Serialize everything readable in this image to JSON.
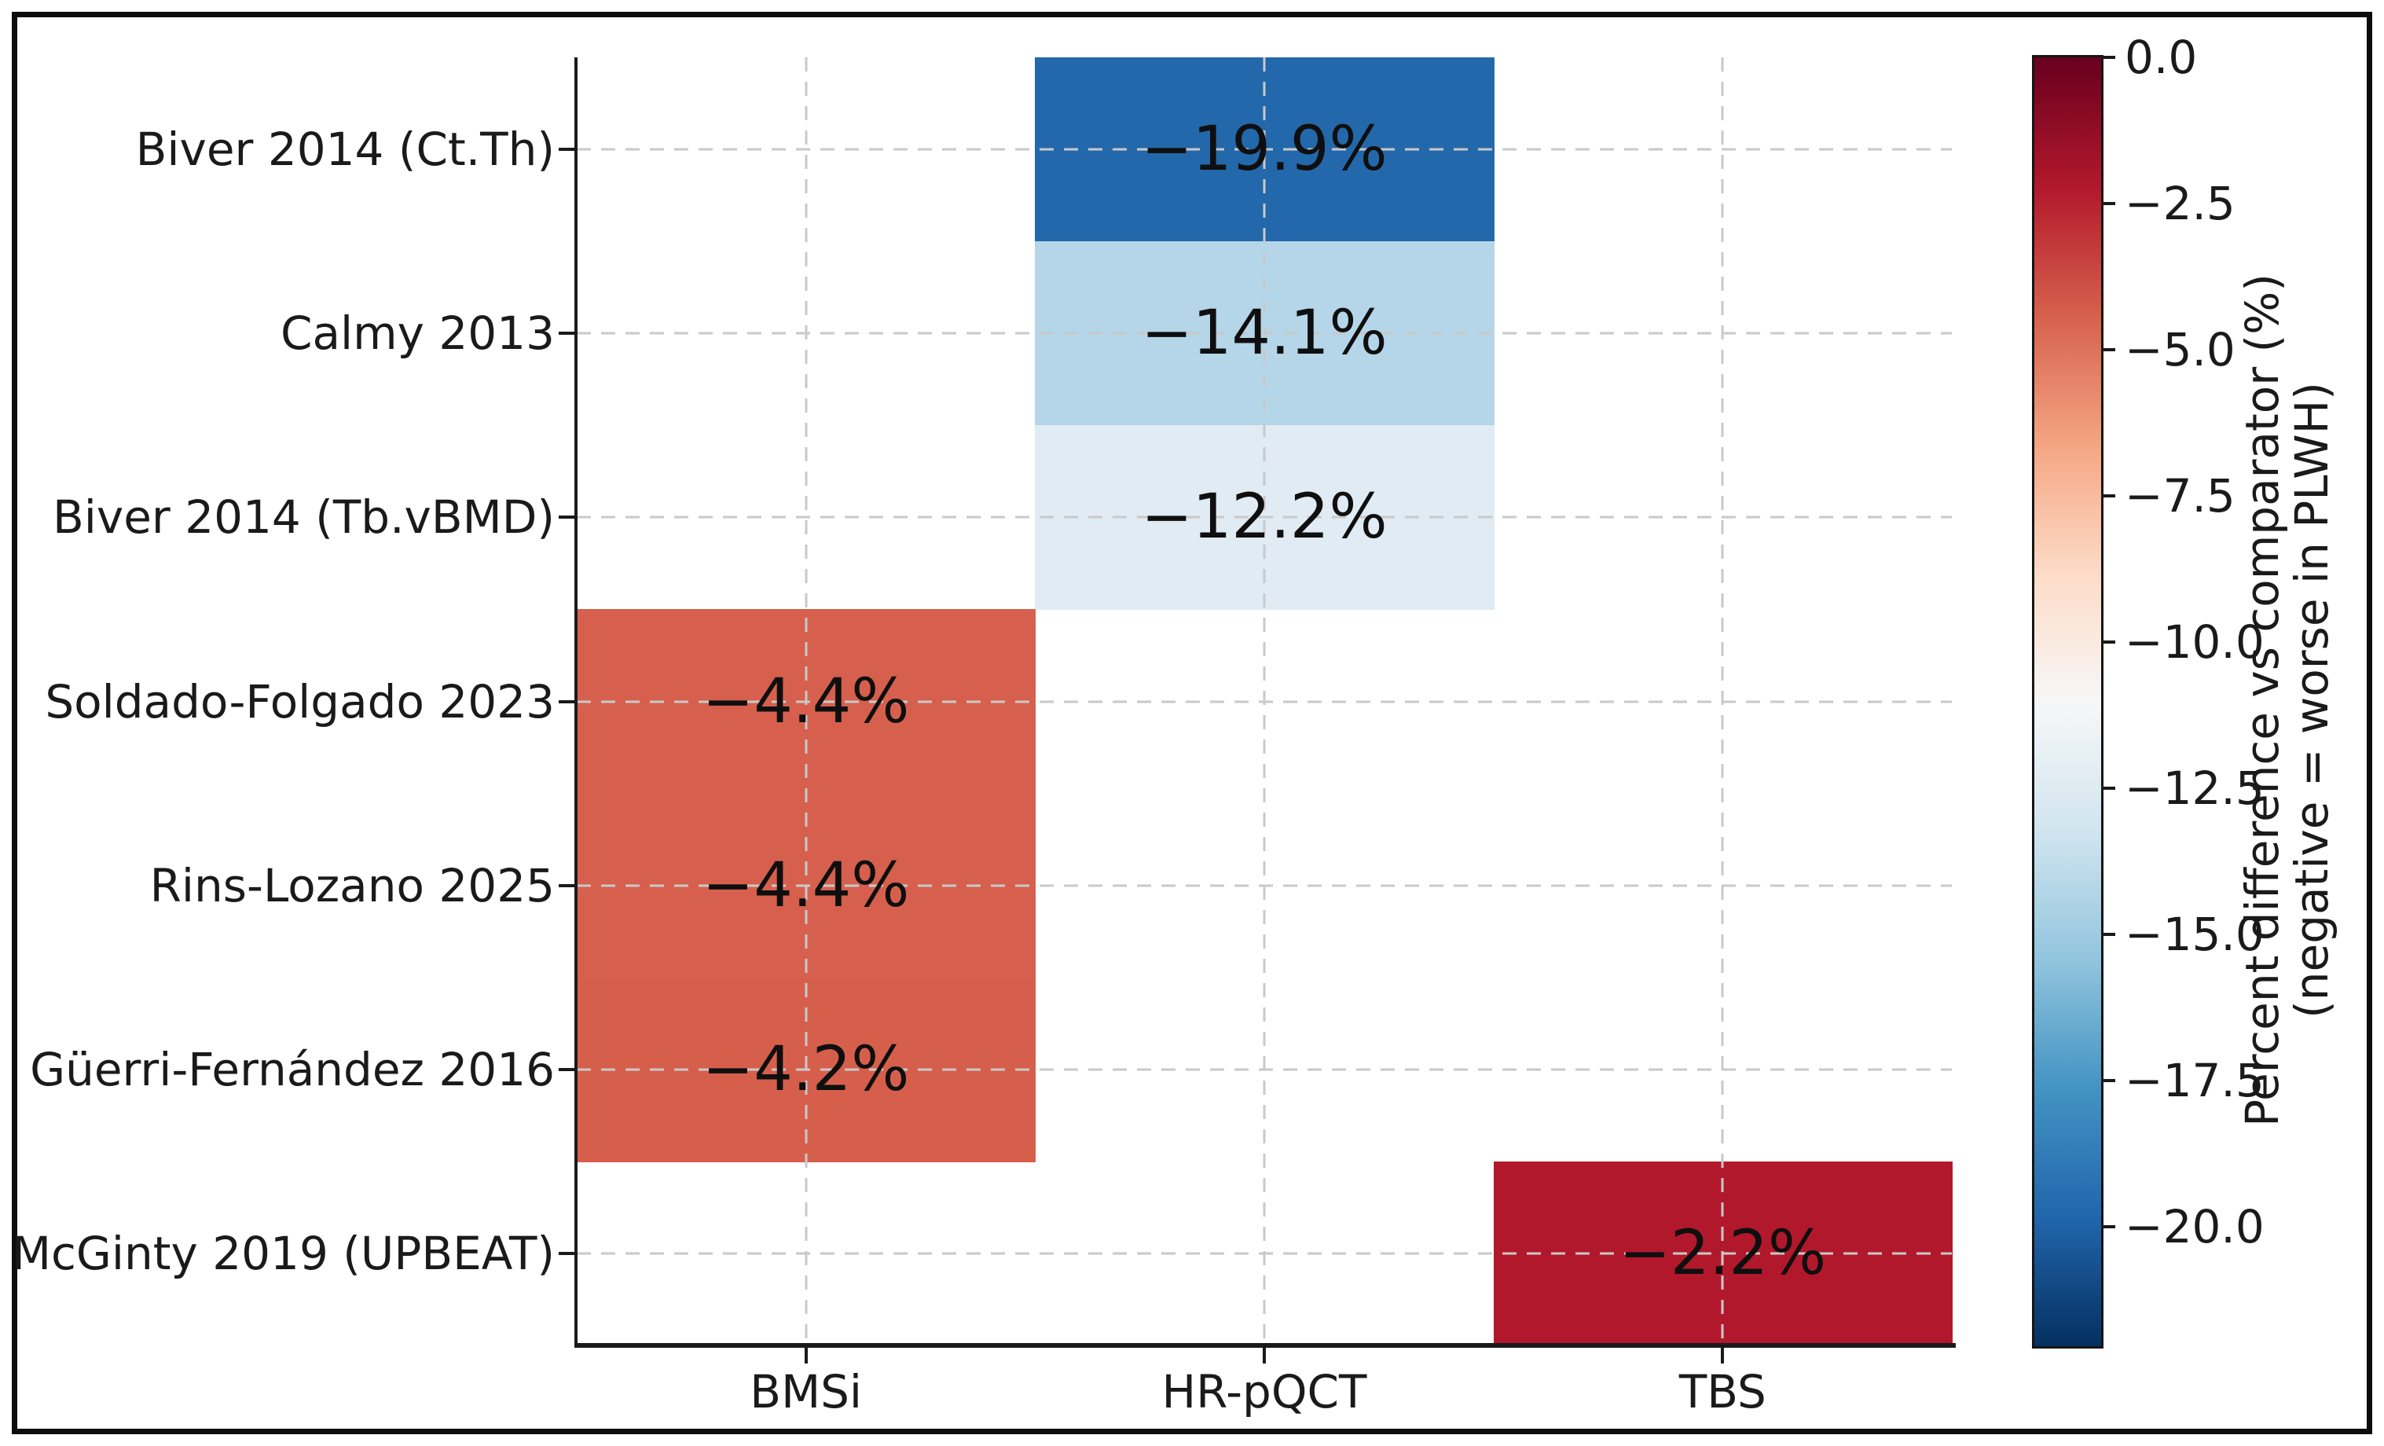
{
  "chart_data": {
    "type": "heatmap",
    "title": "",
    "xlabel": "",
    "ylabel": "",
    "grid": "dashed, drawn over cells",
    "columns": [
      "BMSi",
      "HR-pQCT",
      "TBS"
    ],
    "rows": [
      "Biver 2014 (Ct.Th)",
      "Calmy 2013",
      "Biver 2014 (Tb.vBMD)",
      "Soldado-Folgado 2023",
      "Rins-Lozano 2025",
      "Güerri-Fernández 2016",
      "McGinty 2019 (UPBEAT)"
    ],
    "cells": [
      {
        "row": 0,
        "col": 1,
        "value": -19.9,
        "label": "−19.9%",
        "color": "#2368ab"
      },
      {
        "row": 1,
        "col": 1,
        "value": -14.1,
        "label": "−14.1%",
        "color": "#b4d6e8"
      },
      {
        "row": 2,
        "col": 1,
        "value": -12.2,
        "label": "−12.2%",
        "color": "#e0ebf3"
      },
      {
        "row": 3,
        "col": 0,
        "value": -4.4,
        "label": "−4.4%",
        "color": "#d6604d"
      },
      {
        "row": 4,
        "col": 0,
        "value": -4.4,
        "label": "−4.4%",
        "color": "#d6604d"
      },
      {
        "row": 5,
        "col": 0,
        "value": -4.2,
        "label": "−4.2%",
        "color": "#d65f4c"
      },
      {
        "row": 6,
        "col": 2,
        "value": -2.2,
        "label": "−2.2%",
        "color": "#b2182b"
      }
    ],
    "empty_cell_color": "#ffffff",
    "colorbar": {
      "label_line1": "Percent difference vs comparator (%)",
      "label_line2": "(negative = worse in PLWH)",
      "vmax": 0.0,
      "vmin": -22.0,
      "colormap": "RdBu_r",
      "gradient_top_to_bottom": [
        "#67001f",
        "#b2182b",
        "#d6604d",
        "#f4a582",
        "#fddbc7",
        "#f7f7f7",
        "#d1e5f0",
        "#92c5de",
        "#4393c3",
        "#2166ac",
        "#053061"
      ],
      "ticks": [
        {
          "value": 0.0,
          "label": "0.0"
        },
        {
          "value": -2.5,
          "label": "−2.5"
        },
        {
          "value": -5.0,
          "label": "−5.0"
        },
        {
          "value": -7.5,
          "label": "−7.5"
        },
        {
          "value": -10.0,
          "label": "−10.0"
        },
        {
          "value": -12.5,
          "label": "−12.5"
        },
        {
          "value": -15.0,
          "label": "−15.0"
        },
        {
          "value": -17.5,
          "label": "−17.5"
        },
        {
          "value": -20.0,
          "label": "−20.0"
        }
      ]
    }
  }
}
